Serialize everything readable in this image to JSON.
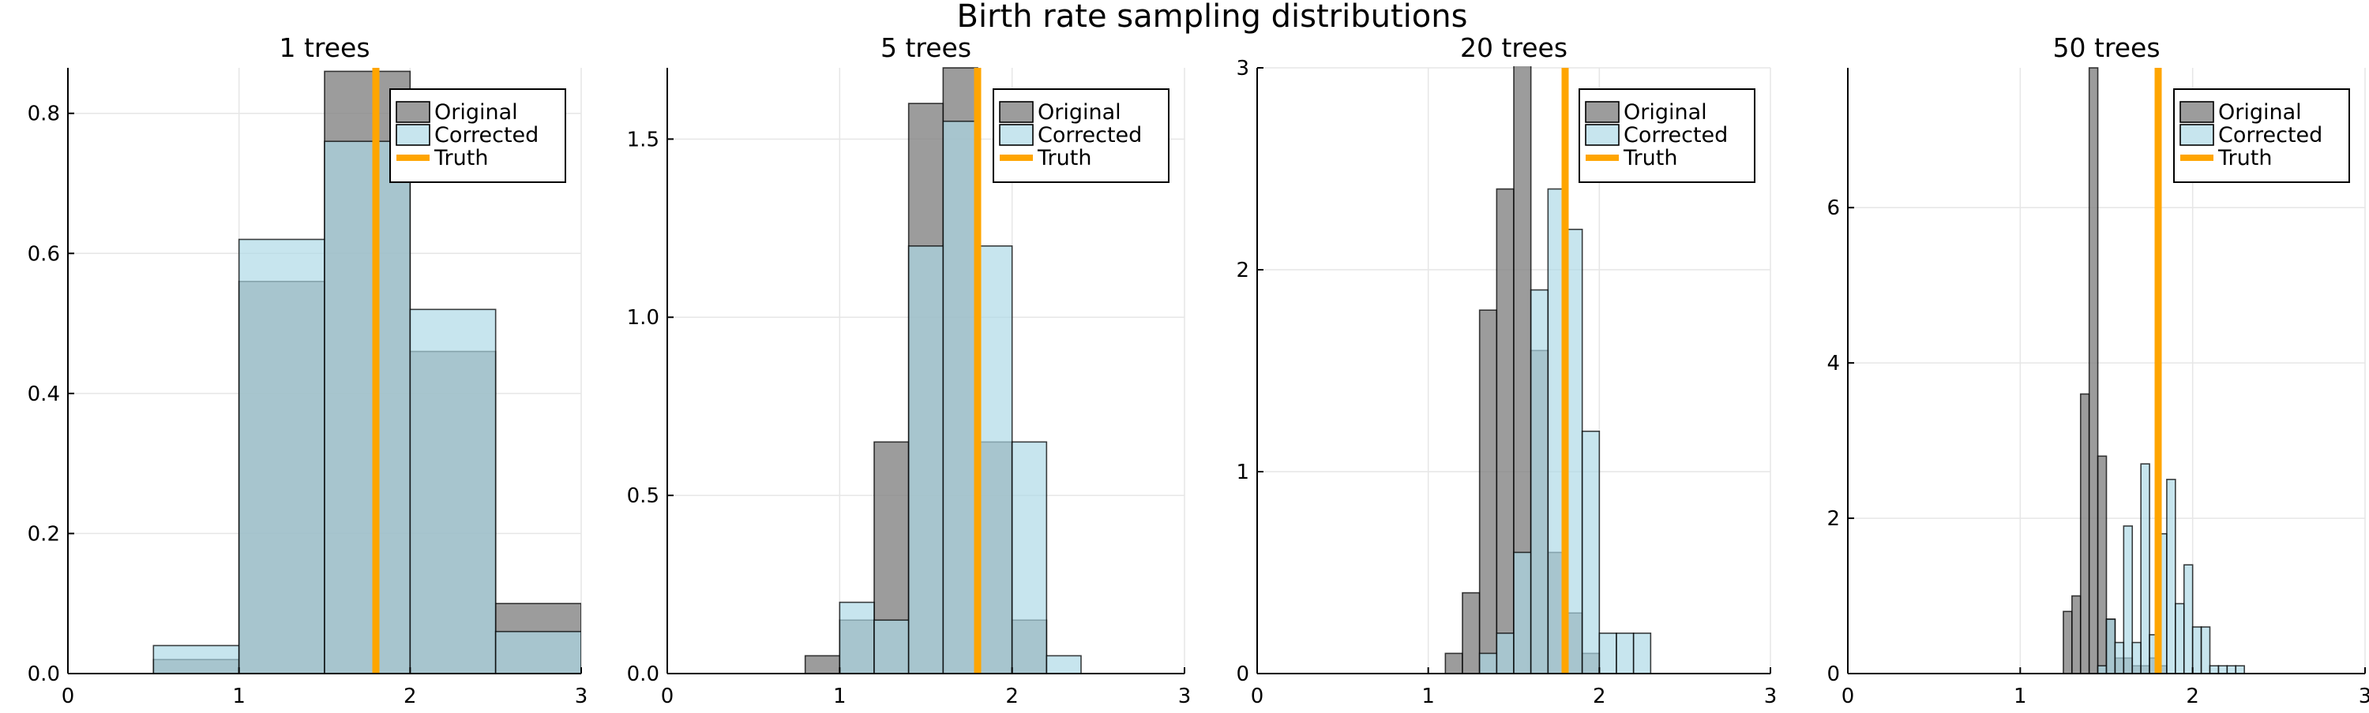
{
  "figure": {
    "title": "Birth rate sampling distributions"
  },
  "legend": {
    "placement": "top-right",
    "entries": [
      "Original",
      "Corrected",
      "Truth"
    ]
  },
  "colors": {
    "original": "#808080",
    "corrected": "#add8e6",
    "truth": "#ffa500",
    "axis": "#000000",
    "grid": "#e6e6e6"
  },
  "chart_data": [
    {
      "type": "bar",
      "title": "1 trees",
      "xlim": [
        0,
        3
      ],
      "ylim": [
        0,
        0.865
      ],
      "xticks": [
        "0",
        "1",
        "2",
        "3"
      ],
      "yticks": [
        {
          "v": 0.0,
          "label": "0.0"
        },
        {
          "v": 0.2,
          "label": "0.2"
        },
        {
          "v": 0.4,
          "label": "0.4"
        },
        {
          "v": 0.6,
          "label": "0.6"
        },
        {
          "v": 0.8,
          "label": "0.8"
        }
      ],
      "truth": 1.8,
      "series": [
        {
          "name": "Original",
          "bin_width": 0.5,
          "edges": [
            0.5,
            1.0,
            1.5,
            2.0,
            2.5
          ],
          "values": [
            0.02,
            0.56,
            0.86,
            0.46,
            0.1
          ]
        },
        {
          "name": "Corrected",
          "bin_width": 0.5,
          "edges": [
            0.5,
            1.0,
            1.5,
            2.0,
            2.5
          ],
          "values": [
            0.04,
            0.62,
            0.76,
            0.52,
            0.06
          ]
        }
      ]
    },
    {
      "type": "bar",
      "title": "5 trees",
      "xlim": [
        0,
        3
      ],
      "ylim": [
        0,
        1.7
      ],
      "xticks": [
        "0",
        "1",
        "2",
        "3"
      ],
      "yticks": [
        {
          "v": 0.0,
          "label": "0.0"
        },
        {
          "v": 0.5,
          "label": "0.5"
        },
        {
          "v": 1.0,
          "label": "1.0"
        },
        {
          "v": 1.5,
          "label": "1.5"
        }
      ],
      "truth": 1.8,
      "series": [
        {
          "name": "Original",
          "bin_width": 0.2,
          "edges": [
            0.8,
            1.0,
            1.2,
            1.4,
            1.6,
            1.8,
            2.0
          ],
          "values": [
            0.05,
            0.15,
            0.65,
            1.6,
            1.7,
            0.65,
            0.15
          ]
        },
        {
          "name": "Corrected",
          "bin_width": 0.2,
          "edges": [
            1.0,
            1.2,
            1.4,
            1.6,
            1.8,
            2.0,
            2.2
          ],
          "values": [
            0.2,
            0.15,
            1.2,
            1.55,
            1.2,
            0.65,
            0.05
          ]
        }
      ]
    },
    {
      "type": "bar",
      "title": "20 trees",
      "xlim": [
        0,
        3
      ],
      "ylim": [
        0,
        3.0
      ],
      "xticks": [
        "0",
        "1",
        "2",
        "3"
      ],
      "yticks": [
        {
          "v": 0,
          "label": "0"
        },
        {
          "v": 1,
          "label": "1"
        },
        {
          "v": 2,
          "label": "2"
        },
        {
          "v": 3,
          "label": "3"
        }
      ],
      "truth": 1.8,
      "series": [
        {
          "name": "Original",
          "bin_width": 0.1,
          "edges": [
            1.1,
            1.2,
            1.3,
            1.4,
            1.5,
            1.6,
            1.7,
            1.8,
            1.9
          ],
          "values": [
            0.1,
            0.4,
            1.8,
            2.4,
            3.1,
            1.6,
            0.6,
            0.3,
            0.1
          ]
        },
        {
          "name": "Corrected",
          "bin_width": 0.1,
          "edges": [
            1.3,
            1.4,
            1.5,
            1.6,
            1.7,
            1.8,
            1.9,
            2.0,
            2.1,
            2.2
          ],
          "values": [
            0.1,
            0.2,
            0.6,
            1.9,
            2.4,
            2.2,
            1.2,
            0.2,
            0.2,
            0.2
          ]
        }
      ]
    },
    {
      "type": "bar",
      "title": "50 trees",
      "xlim": [
        0,
        3
      ],
      "ylim": [
        0,
        7.8
      ],
      "xticks": [
        "0",
        "1",
        "2",
        "3"
      ],
      "yticks": [
        {
          "v": 0,
          "label": "0"
        },
        {
          "v": 2,
          "label": "2"
        },
        {
          "v": 4,
          "label": "4"
        },
        {
          "v": 6,
          "label": "6"
        }
      ],
      "truth": 1.8,
      "series": [
        {
          "name": "Original",
          "bin_width": 0.05,
          "edges": [
            1.25,
            1.3,
            1.35,
            1.4,
            1.45,
            1.5,
            1.55,
            1.6,
            1.65,
            1.7,
            1.75,
            1.8
          ],
          "values": [
            0.8,
            1.0,
            3.6,
            7.8,
            2.8,
            0.7,
            0.2,
            0.2,
            0.1,
            0.1,
            0.2,
            0.1
          ]
        },
        {
          "name": "Corrected",
          "bin_width": 0.05,
          "edges": [
            1.45,
            1.5,
            1.55,
            1.6,
            1.65,
            1.7,
            1.75,
            1.8,
            1.85,
            1.9,
            1.95,
            2.0,
            2.05,
            2.1,
            2.15,
            2.2,
            2.25
          ],
          "values": [
            0.1,
            0.7,
            0.4,
            1.9,
            0.4,
            2.7,
            0.5,
            1.8,
            2.5,
            0.9,
            1.4,
            0.6,
            0.6,
            0.1,
            0.1,
            0.1,
            0.1
          ]
        }
      ]
    }
  ]
}
